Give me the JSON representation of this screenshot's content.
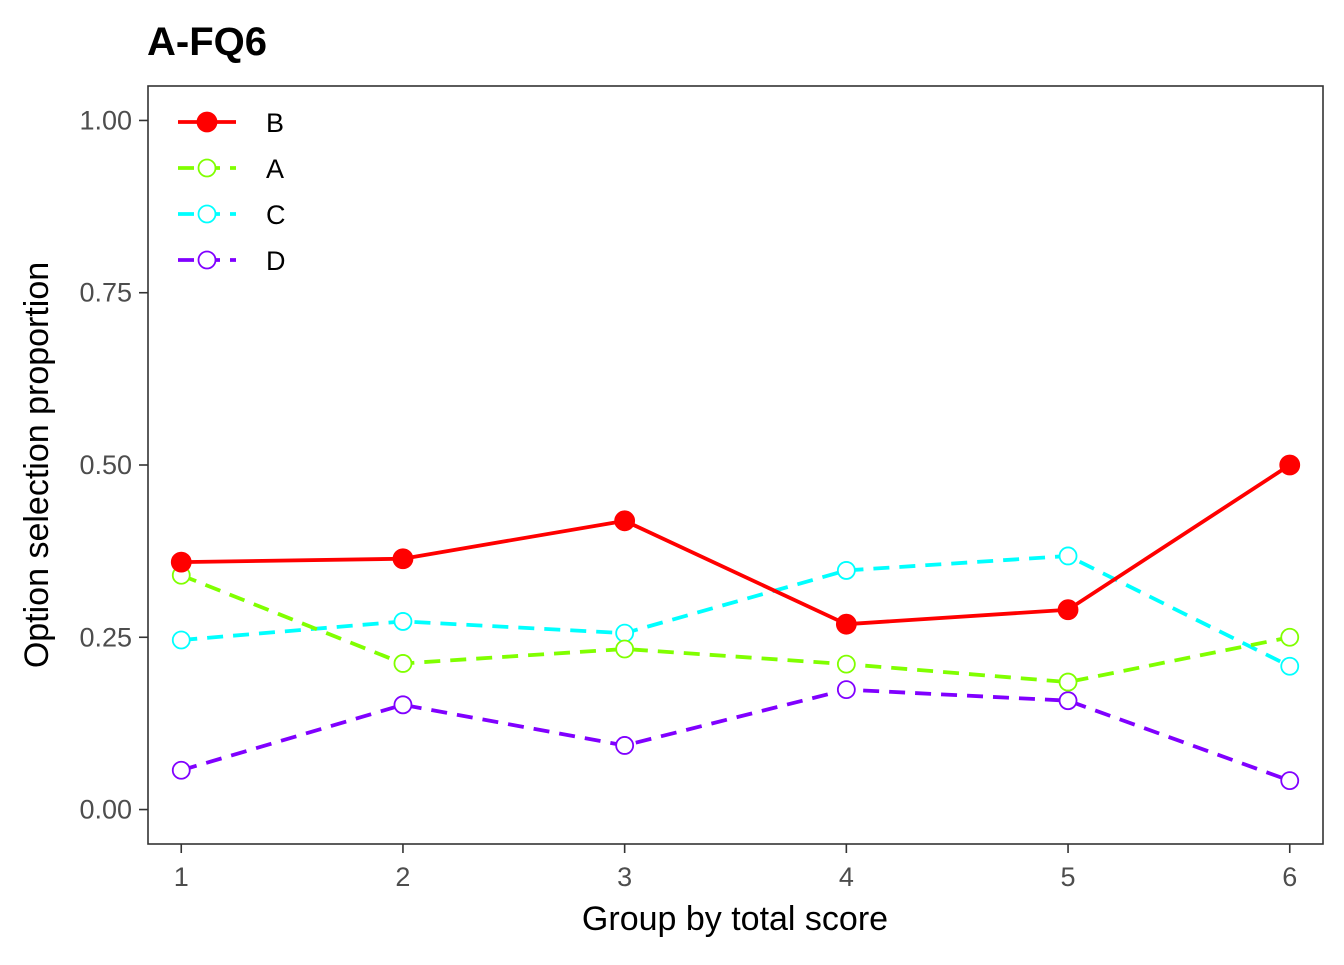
{
  "chart_data": {
    "type": "line",
    "title": "A-FQ6",
    "xlabel": "Group by total score",
    "ylabel": "Option selection proportion",
    "x": [
      1,
      2,
      3,
      4,
      5,
      6
    ],
    "xlim": [
      0.85,
      6.15
    ],
    "ylim": [
      -0.05,
      1.05
    ],
    "xticks": [
      1,
      2,
      3,
      4,
      5,
      6
    ],
    "yticks": [
      0,
      0.25,
      0.5,
      0.75,
      1
    ],
    "ytick_labels": [
      "0.00",
      "0.25",
      "0.50",
      "0.75",
      "1.00"
    ],
    "grid": false,
    "legend_position": "top-left",
    "series": [
      {
        "name": "B",
        "color": "#FF0000",
        "dashed": false,
        "filled": true,
        "values": [
          0.359,
          0.364,
          0.419,
          0.269,
          0.29,
          0.5
        ]
      },
      {
        "name": "A",
        "color": "#80FF00",
        "dashed": true,
        "filled": false,
        "values": [
          0.34,
          0.212,
          0.233,
          0.211,
          0.185,
          0.25
        ]
      },
      {
        "name": "C",
        "color": "#00FFFF",
        "dashed": true,
        "filled": false,
        "values": [
          0.246,
          0.273,
          0.256,
          0.347,
          0.368,
          0.208
        ]
      },
      {
        "name": "D",
        "color": "#8000FF",
        "dashed": true,
        "filled": false,
        "values": [
          0.057,
          0.152,
          0.093,
          0.174,
          0.158,
          0.042
        ]
      }
    ]
  }
}
